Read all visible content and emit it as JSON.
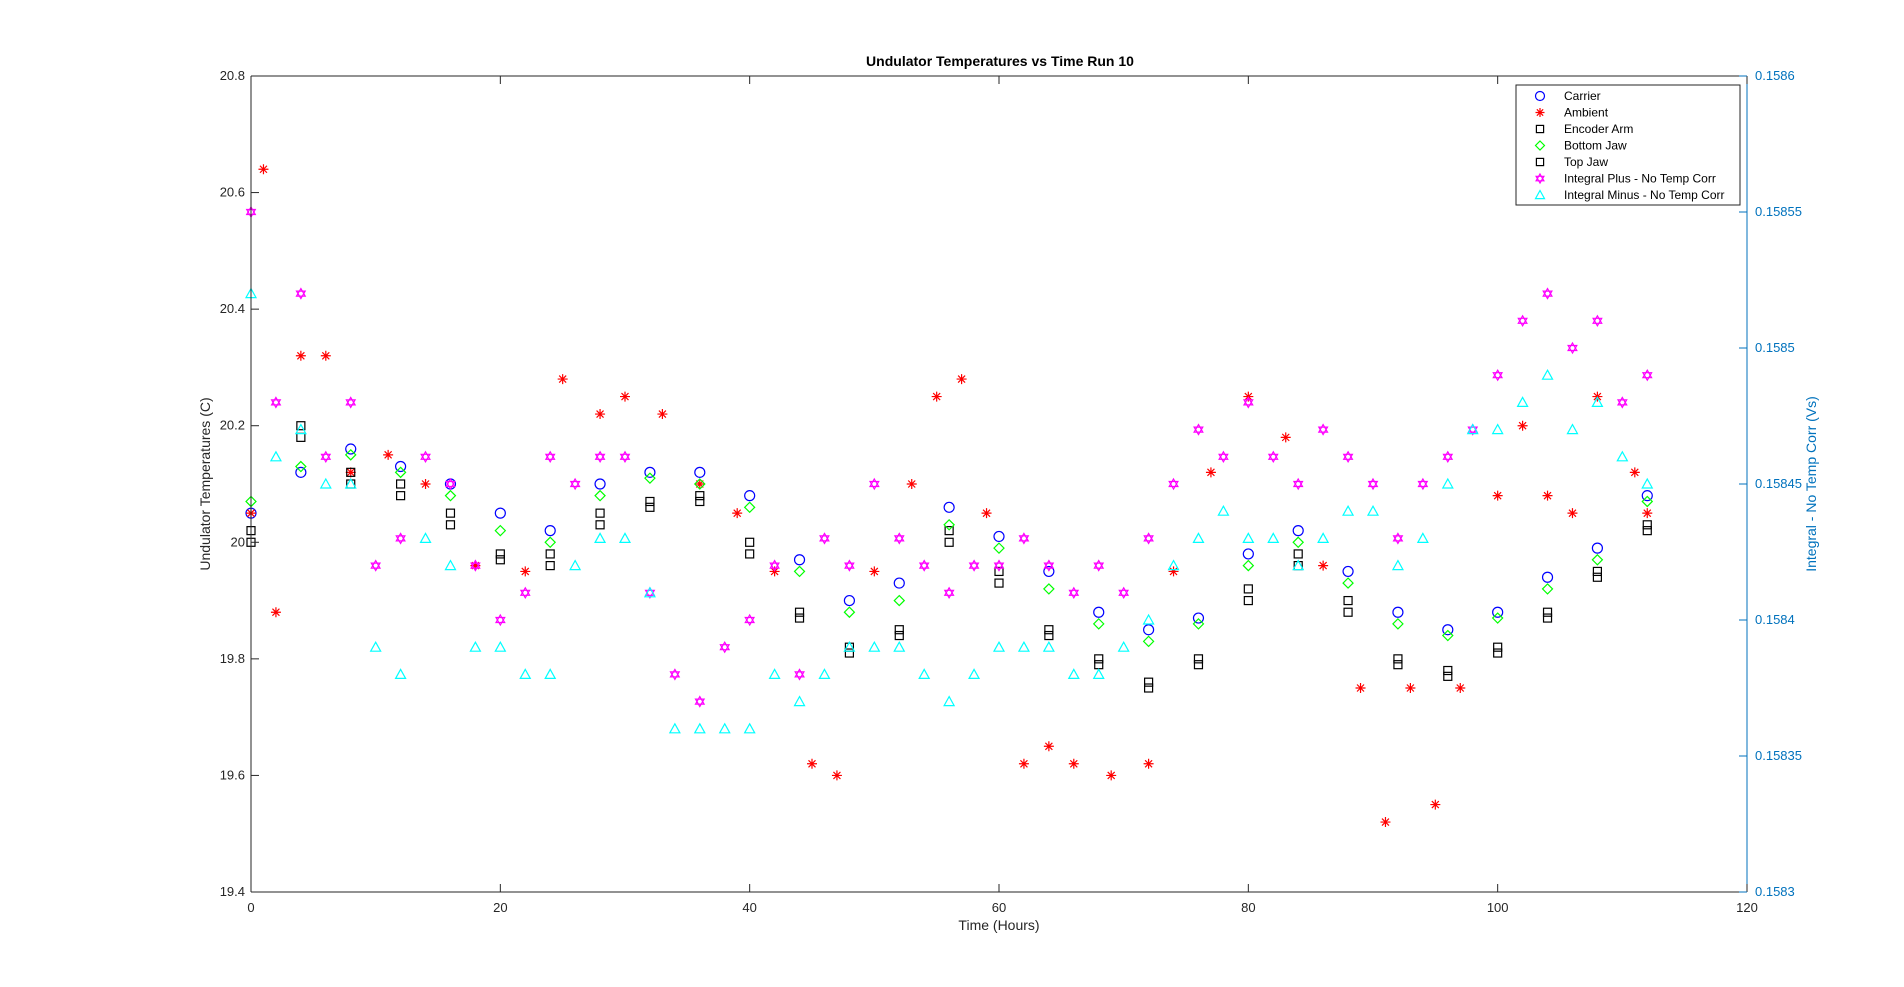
{
  "chart_data": {
    "type": "scatter",
    "title": "Undulator Temperatures vs Time Run 10",
    "xlabel": "Time (Hours)",
    "ylabel": "Undulator Temperatures (C)",
    "y2label": "Integral -  No Temp Corr (Vs)",
    "xlim": [
      0,
      120
    ],
    "ylim": [
      19.4,
      20.8
    ],
    "y2lim": [
      0.1583,
      0.1586
    ],
    "xticks": [
      "0",
      "20",
      "40",
      "60",
      "80",
      "100",
      "120"
    ],
    "yticks": [
      "19.4",
      "19.6",
      "19.8",
      "20",
      "20.2",
      "20.4",
      "20.6",
      "20.8"
    ],
    "y2ticks": [
      "0.1583",
      "0.15835",
      "0.1584",
      "0.15845",
      "0.1585",
      "0.15855",
      "0.1586"
    ],
    "grid": false,
    "legend_position": "top-right",
    "series": [
      {
        "name": "Carrier",
        "axis": "left",
        "marker": "circle",
        "color": "#0000ff",
        "x": [
          0,
          4,
          8,
          12,
          16,
          20,
          24,
          28,
          32,
          36,
          40,
          44,
          48,
          52,
          56,
          60,
          64,
          68,
          72,
          76,
          80,
          84,
          88,
          92,
          96,
          100,
          104,
          108,
          112
        ],
        "y": [
          20.05,
          20.12,
          20.16,
          20.13,
          20.1,
          20.05,
          20.02,
          20.1,
          20.12,
          20.12,
          20.08,
          19.97,
          19.9,
          19.93,
          20.06,
          20.01,
          19.95,
          19.88,
          19.85,
          19.87,
          19.98,
          20.02,
          19.95,
          19.88,
          19.85,
          19.88,
          19.94,
          19.99,
          20.08
        ]
      },
      {
        "name": "Ambient",
        "axis": "left",
        "marker": "asterisk",
        "color": "#ff0000",
        "x": [
          0,
          1,
          2,
          4,
          6,
          8,
          11,
          14,
          18,
          22,
          25,
          28,
          30,
          33,
          36,
          39,
          42,
          45,
          47,
          50,
          53,
          55,
          57,
          59,
          62,
          64,
          66,
          69,
          72,
          74,
          77,
          80,
          83,
          86,
          89,
          91,
          93,
          95,
          97,
          100,
          102,
          104,
          106,
          108,
          111,
          112
        ],
        "y": [
          20.05,
          20.64,
          19.88,
          20.32,
          20.32,
          20.12,
          20.15,
          20.1,
          19.96,
          19.95,
          20.28,
          20.22,
          20.25,
          20.22,
          20.1,
          20.05,
          19.95,
          19.62,
          19.6,
          19.95,
          20.1,
          20.25,
          20.28,
          20.05,
          19.62,
          19.65,
          19.62,
          19.6,
          19.62,
          19.95,
          20.12,
          20.25,
          20.18,
          19.96,
          19.75,
          19.52,
          19.75,
          19.55,
          19.75,
          20.08,
          20.2,
          20.08,
          20.05,
          20.25,
          20.12,
          20.05
        ]
      },
      {
        "name": "Encoder Arm",
        "axis": "left",
        "marker": "square",
        "color": "#000000",
        "x": [
          0,
          4,
          8,
          12,
          16,
          20,
          24,
          28,
          32,
          36,
          40,
          44,
          48,
          52,
          56,
          60,
          64,
          68,
          72,
          76,
          80,
          84,
          88,
          92,
          96,
          100,
          104,
          108,
          112
        ],
        "y": [
          20.0,
          20.2,
          20.12,
          20.1,
          20.05,
          19.98,
          19.98,
          20.05,
          20.07,
          20.08,
          20.0,
          19.88,
          19.82,
          19.85,
          20.02,
          19.95,
          19.85,
          19.8,
          19.76,
          19.8,
          19.92,
          19.98,
          19.9,
          19.8,
          19.78,
          19.82,
          19.88,
          19.95,
          20.03
        ]
      },
      {
        "name": "Bottom Jaw",
        "axis": "left",
        "marker": "diamond",
        "color": "#00ff00",
        "x": [
          0,
          4,
          8,
          12,
          16,
          20,
          24,
          28,
          32,
          36,
          40,
          44,
          48,
          52,
          56,
          60,
          64,
          68,
          72,
          76,
          80,
          84,
          88,
          92,
          96,
          100,
          104,
          108,
          112
        ],
        "y": [
          20.07,
          20.13,
          20.15,
          20.12,
          20.08,
          20.02,
          20.0,
          20.08,
          20.11,
          20.1,
          20.06,
          19.95,
          19.88,
          19.9,
          20.03,
          19.99,
          19.92,
          19.86,
          19.83,
          19.86,
          19.96,
          20.0,
          19.93,
          19.86,
          19.84,
          19.87,
          19.92,
          19.97,
          20.07
        ]
      },
      {
        "name": "Top Jaw",
        "axis": "left",
        "marker": "square",
        "color": "#000000",
        "x": [
          0,
          4,
          8,
          12,
          16,
          20,
          24,
          28,
          32,
          36,
          40,
          44,
          48,
          52,
          56,
          60,
          64,
          68,
          72,
          76,
          80,
          84,
          88,
          92,
          96,
          100,
          104,
          108,
          112
        ],
        "y": [
          20.02,
          20.18,
          20.1,
          20.08,
          20.03,
          19.97,
          19.96,
          20.03,
          20.06,
          20.07,
          19.98,
          19.87,
          19.81,
          19.84,
          20.0,
          19.93,
          19.84,
          19.79,
          19.75,
          19.79,
          19.9,
          19.96,
          19.88,
          19.79,
          19.77,
          19.81,
          19.87,
          19.94,
          20.02
        ]
      },
      {
        "name": "Integral Plus -  No Temp Corr",
        "axis": "right",
        "marker": "hexagram",
        "color": "#ff00ff",
        "x": [
          0,
          2,
          4,
          6,
          8,
          10,
          12,
          14,
          16,
          18,
          20,
          22,
          24,
          26,
          28,
          30,
          32,
          34,
          36,
          38,
          40,
          42,
          44,
          46,
          48,
          50,
          52,
          54,
          56,
          58,
          60,
          62,
          64,
          66,
          68,
          70,
          72,
          74,
          76,
          78,
          80,
          82,
          84,
          86,
          88,
          90,
          92,
          94,
          96,
          98,
          100,
          102,
          104,
          106,
          108,
          110,
          112
        ],
        "y": [
          0.15855,
          0.15848,
          0.15852,
          0.15846,
          0.15848,
          0.15842,
          0.15843,
          0.15846,
          0.15845,
          0.15842,
          0.1584,
          0.15841,
          0.15846,
          0.15845,
          0.15846,
          0.15846,
          0.15841,
          0.15838,
          0.15837,
          0.15839,
          0.1584,
          0.15842,
          0.15838,
          0.15843,
          0.15842,
          0.15845,
          0.15843,
          0.15842,
          0.15841,
          0.15842,
          0.15842,
          0.15843,
          0.15842,
          0.15841,
          0.15842,
          0.15841,
          0.15843,
          0.15845,
          0.15847,
          0.15846,
          0.15848,
          0.15846,
          0.15845,
          0.15847,
          0.15846,
          0.15845,
          0.15843,
          0.15845,
          0.15846,
          0.15847,
          0.15849,
          0.15851,
          0.15852,
          0.1585,
          0.15851,
          0.15848,
          0.15849
        ]
      },
      {
        "name": "Integral Minus -  No Temp Corr",
        "axis": "right",
        "marker": "triangle",
        "color": "#00ffff",
        "x": [
          0,
          2,
          4,
          6,
          8,
          10,
          12,
          14,
          16,
          18,
          20,
          22,
          24,
          26,
          28,
          30,
          32,
          34,
          36,
          38,
          40,
          42,
          44,
          46,
          48,
          50,
          52,
          54,
          56,
          58,
          60,
          62,
          64,
          66,
          68,
          70,
          72,
          74,
          76,
          78,
          80,
          82,
          84,
          86,
          88,
          90,
          92,
          94,
          96,
          98,
          100,
          102,
          104,
          106,
          108,
          110,
          112
        ],
        "y": [
          0.15852,
          0.15846,
          0.15847,
          0.15845,
          0.15845,
          0.15839,
          0.15838,
          0.15843,
          0.15842,
          0.15839,
          0.15839,
          0.15838,
          0.15838,
          0.15842,
          0.15843,
          0.15843,
          0.15841,
          0.15836,
          0.15836,
          0.15836,
          0.15836,
          0.15838,
          0.15837,
          0.15838,
          0.15839,
          0.15839,
          0.15839,
          0.15838,
          0.15837,
          0.15838,
          0.15839,
          0.15839,
          0.15839,
          0.15838,
          0.15838,
          0.15839,
          0.1584,
          0.15842,
          0.15843,
          0.15844,
          0.15843,
          0.15843,
          0.15842,
          0.15843,
          0.15844,
          0.15844,
          0.15842,
          0.15843,
          0.15845,
          0.15847,
          0.15847,
          0.15848,
          0.15849,
          0.15847,
          0.15848,
          0.15846,
          0.15845
        ]
      }
    ]
  }
}
